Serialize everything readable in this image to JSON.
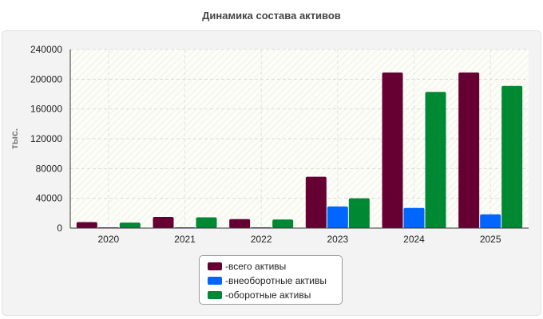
{
  "chart_data": {
    "type": "bar",
    "title": "Динамика состава активов",
    "ylabel": "тыс.",
    "xlabel": "",
    "categories": [
      "2020",
      "2021",
      "2022",
      "2023",
      "2024",
      "2025"
    ],
    "ylim": [
      0,
      240000
    ],
    "yticks": [
      "0",
      "40000",
      "80000",
      "120000",
      "160000",
      "200000",
      "240000"
    ],
    "grid": true,
    "legend_position": "bottom-center",
    "legend_prefix": "- ",
    "series": [
      {
        "name": "всего активы",
        "color": "#660033",
        "values": [
          8000,
          15000,
          12000,
          69000,
          209000,
          209000
        ]
      },
      {
        "name": "внеоборотные активы",
        "color": "#0066ff",
        "values": [
          600,
          800,
          700,
          29000,
          27000,
          18500
        ]
      },
      {
        "name": "оборотные активы",
        "color": "#008833",
        "values": [
          7400,
          14500,
          11500,
          40000,
          183000,
          191000
        ]
      }
    ]
  }
}
